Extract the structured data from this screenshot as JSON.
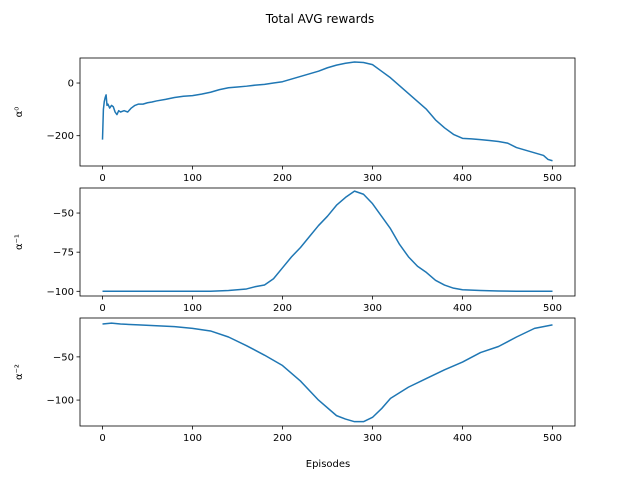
{
  "chart_data": {
    "title": "Total AVG rewards",
    "xlabel": "Episodes",
    "line_color": "#1f77b4",
    "xlim": [
      -25,
      525
    ],
    "xticks": [
      0,
      100,
      200,
      300,
      400,
      500
    ],
    "subplots": [
      {
        "type": "line",
        "ylabel": "α⁰",
        "ylim": [
          -315,
          95
        ],
        "yticks": [
          0,
          -200
        ],
        "series": [
          {
            "x": [
              0,
              1,
              2,
              3,
              4,
              5,
              6,
              8,
              10,
              12,
              14,
              16,
              18,
              20,
              24,
              28,
              32,
              36,
              40,
              45,
              50,
              55,
              60,
              70,
              80,
              90,
              100,
              110,
              120,
              130,
              140,
              150,
              160,
              170,
              180,
              190,
              200,
              210,
              220,
              230,
              240,
              250,
              260,
              270,
              280,
              290,
              300,
              310,
              320,
              330,
              340,
              350,
              360,
              370,
              380,
              390,
              400,
              410,
              420,
              430,
              440,
              450,
              460,
              470,
              480,
              490,
              495,
              500
            ],
            "y": [
              -215,
              -100,
              -70,
              -55,
              -45,
              -85,
              -80,
              -95,
              -85,
              -90,
              -110,
              -120,
              -105,
              -110,
              -105,
              -110,
              -95,
              -85,
              -80,
              -80,
              -75,
              -72,
              -68,
              -62,
              -55,
              -50,
              -48,
              -42,
              -35,
              -25,
              -18,
              -15,
              -12,
              -8,
              -5,
              0,
              5,
              15,
              25,
              35,
              45,
              58,
              68,
              75,
              80,
              78,
              70,
              45,
              20,
              -10,
              -40,
              -70,
              -100,
              -140,
              -170,
              -195,
              -210,
              -212,
              -215,
              -218,
              -222,
              -228,
              -245,
              -255,
              -265,
              -275,
              -290,
              -295
            ]
          }
        ]
      },
      {
        "type": "line",
        "ylabel": "α⁻¹",
        "ylim": [
          -103,
          -34
        ],
        "yticks": [
          -50,
          -75,
          -100
        ],
        "series": [
          {
            "x": [
              0,
              100,
              120,
              140,
              150,
              160,
              170,
              180,
              190,
              200,
              210,
              220,
              230,
              240,
              250,
              260,
              270,
              280,
              290,
              300,
              310,
              320,
              330,
              340,
              350,
              360,
              370,
              380,
              390,
              400,
              420,
              440,
              460,
              480,
              500
            ],
            "y": [
              -100,
              -100,
              -100,
              -99.5,
              -99,
              -98.5,
              -97,
              -96,
              -92,
              -85,
              -78,
              -72,
              -65,
              -58,
              -52,
              -45,
              -40,
              -36,
              -38,
              -44,
              -52,
              -60,
              -70,
              -78,
              -84,
              -88,
              -93,
              -96,
              -98,
              -99,
              -99.5,
              -99.8,
              -100,
              -100,
              -100
            ]
          }
        ]
      },
      {
        "type": "line",
        "ylabel": "α⁻²",
        "ylim": [
          -130,
          -5
        ],
        "yticks": [
          -50,
          -100
        ],
        "series": [
          {
            "x": [
              0,
              10,
              20,
              40,
              60,
              80,
              100,
              120,
              140,
              160,
              180,
              200,
              220,
              240,
              260,
              270,
              280,
              290,
              300,
              310,
              320,
              340,
              360,
              380,
              400,
              420,
              440,
              460,
              480,
              500
            ],
            "y": [
              -12,
              -11,
              -12,
              -13,
              -14,
              -15,
              -17,
              -20,
              -27,
              -37,
              -48,
              -60,
              -78,
              -100,
              -118,
              -122,
              -125,
              -125,
              -120,
              -110,
              -98,
              -85,
              -75,
              -65,
              -56,
              -45,
              -38,
              -27,
              -17,
              -13
            ]
          }
        ]
      }
    ]
  }
}
